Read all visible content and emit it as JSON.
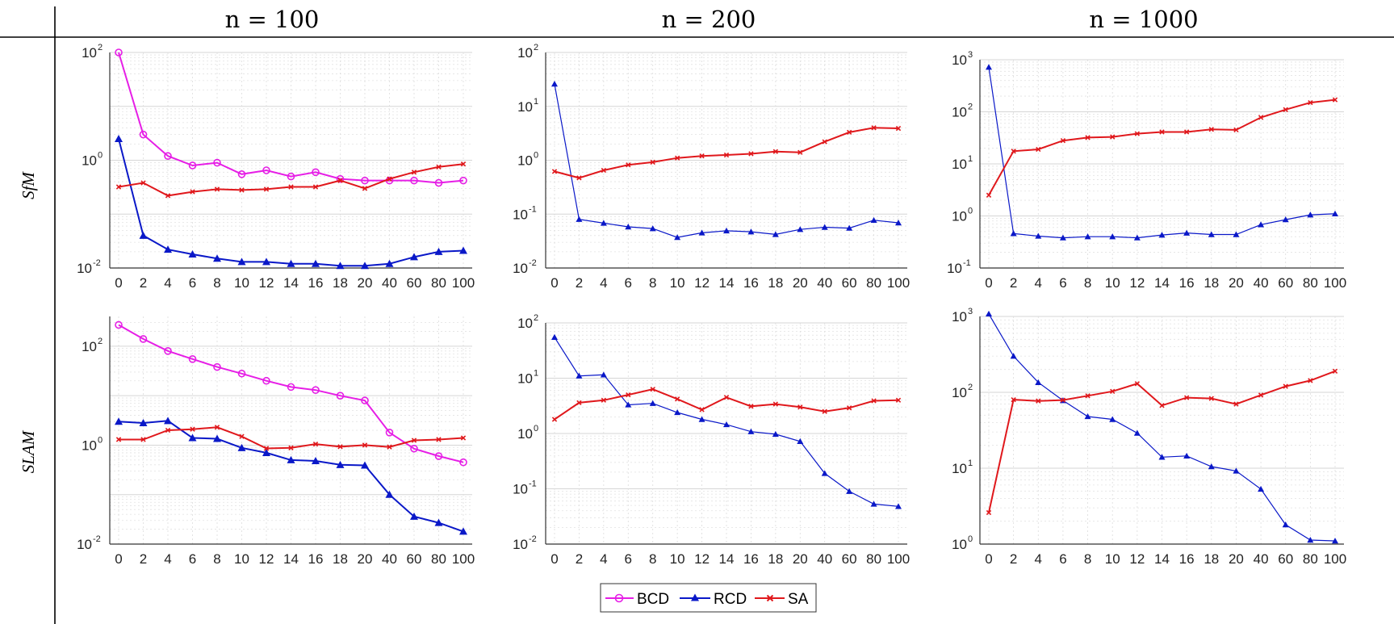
{
  "header": {
    "columns": [
      "n = 100",
      "n = 200",
      "n = 1000"
    ],
    "rows": [
      "SfM",
      "SLAM"
    ]
  },
  "colors": {
    "BCD": "#e61ee6",
    "RCD": "#0a18c8",
    "SA": "#e0181c",
    "grid": "#d6d6d6"
  },
  "legend": [
    {
      "name": "BCD",
      "marker": "circle"
    },
    {
      "name": "RCD",
      "marker": "triangle"
    },
    {
      "name": "SA",
      "marker": "x"
    }
  ],
  "chart_data": [
    {
      "type": "line",
      "row": "SfM",
      "column": "n = 100",
      "categories": [
        "0",
        "2",
        "4",
        "6",
        "8",
        "10",
        "12",
        "14",
        "16",
        "18",
        "20",
        "40",
        "60",
        "80",
        "100"
      ],
      "yscale": "log",
      "ylim": [
        0.01,
        100
      ],
      "yticks": [
        0.01,
        1,
        100
      ],
      "series": [
        {
          "name": "BCD",
          "values": [
            100,
            3.0,
            1.2,
            0.8,
            0.9,
            0.55,
            0.65,
            0.5,
            0.6,
            0.45,
            0.42,
            0.42,
            0.42,
            0.38,
            0.42
          ]
        },
        {
          "name": "RCD",
          "values": [
            2.5,
            0.04,
            0.022,
            0.018,
            0.015,
            0.013,
            0.013,
            0.012,
            0.012,
            0.011,
            0.011,
            0.012,
            0.016,
            0.02,
            0.021
          ]
        },
        {
          "name": "SA",
          "values": [
            0.32,
            0.38,
            0.22,
            0.26,
            0.29,
            0.28,
            0.29,
            0.32,
            0.32,
            0.42,
            0.3,
            0.45,
            0.6,
            0.75,
            0.85
          ]
        }
      ]
    },
    {
      "type": "line",
      "row": "SfM",
      "column": "n = 200",
      "categories": [
        "0",
        "2",
        "4",
        "6",
        "8",
        "10",
        "12",
        "14",
        "16",
        "18",
        "20",
        "40",
        "60",
        "80",
        "100"
      ],
      "yscale": "log",
      "ylim": [
        0.01,
        100
      ],
      "yticks": [
        0.01,
        0.1,
        1,
        10,
        100
      ],
      "series": [
        {
          "name": "RCD",
          "values": [
            26,
            0.08,
            0.068,
            0.058,
            0.054,
            0.037,
            0.045,
            0.049,
            0.047,
            0.042,
            0.052,
            0.057,
            0.055,
            0.077,
            0.069
          ]
        },
        {
          "name": "SA",
          "values": [
            0.62,
            0.47,
            0.65,
            0.82,
            0.92,
            1.1,
            1.2,
            1.25,
            1.32,
            1.45,
            1.4,
            2.2,
            3.3,
            4.0,
            3.9
          ]
        }
      ]
    },
    {
      "type": "line",
      "row": "SfM",
      "column": "n = 1000",
      "categories": [
        "0",
        "2",
        "4",
        "6",
        "8",
        "10",
        "12",
        "14",
        "16",
        "18",
        "20",
        "40",
        "60",
        "80",
        "100"
      ],
      "yscale": "log",
      "ylim": [
        0.1,
        1000
      ],
      "yticks": [
        0.1,
        1,
        10,
        100,
        1000
      ],
      "series": [
        {
          "name": "RCD",
          "values": [
            720,
            0.46,
            0.41,
            0.38,
            0.4,
            0.4,
            0.38,
            0.43,
            0.47,
            0.44,
            0.44,
            0.68,
            0.85,
            1.05,
            1.1
          ]
        },
        {
          "name": "SA",
          "values": [
            2.5,
            17.5,
            19,
            28,
            32,
            33,
            38,
            41,
            41,
            46,
            45,
            78,
            110,
            150,
            170
          ]
        }
      ]
    },
    {
      "type": "line",
      "row": "SLAM",
      "column": "n = 100",
      "categories": [
        "0",
        "2",
        "4",
        "6",
        "8",
        "10",
        "12",
        "14",
        "16",
        "18",
        "20",
        "40",
        "60",
        "80",
        "100"
      ],
      "yscale": "log",
      "ylim": [
        0.01,
        400
      ],
      "yticks": [
        0.01,
        1,
        100
      ],
      "series": [
        {
          "name": "BCD",
          "values": [
            270,
            140,
            80,
            55,
            38,
            28,
            20,
            15,
            13,
            10,
            8,
            1.8,
            0.85,
            0.6,
            0.45
          ]
        },
        {
          "name": "RCD",
          "values": [
            3.0,
            2.8,
            3.1,
            1.4,
            1.35,
            0.88,
            0.7,
            0.5,
            0.48,
            0.4,
            0.39,
            0.1,
            0.036,
            0.027,
            0.018
          ]
        },
        {
          "name": "SA",
          "values": [
            1.3,
            1.3,
            2.0,
            2.1,
            2.3,
            1.5,
            0.86,
            0.88,
            1.05,
            0.93,
            1.0,
            0.92,
            1.25,
            1.3,
            1.4
          ]
        }
      ]
    },
    {
      "type": "line",
      "row": "SLAM",
      "column": "n = 200",
      "categories": [
        "0",
        "2",
        "4",
        "6",
        "8",
        "10",
        "12",
        "14",
        "16",
        "18",
        "20",
        "40",
        "60",
        "80",
        "100"
      ],
      "yscale": "log",
      "ylim": [
        0.01,
        100
      ],
      "yticks": [
        0.01,
        0.1,
        1,
        10,
        100
      ],
      "series": [
        {
          "name": "RCD",
          "values": [
            55,
            11,
            11.5,
            3.3,
            3.5,
            2.4,
            1.8,
            1.45,
            1.08,
            0.97,
            0.72,
            0.19,
            0.09,
            0.053,
            0.048
          ]
        },
        {
          "name": "SA",
          "values": [
            1.8,
            3.6,
            4.0,
            5.0,
            6.3,
            4.2,
            2.7,
            4.5,
            3.1,
            3.4,
            3.0,
            2.5,
            2.9,
            3.9,
            4.0
          ]
        }
      ]
    },
    {
      "type": "line",
      "row": "SLAM",
      "column": "n = 1000",
      "categories": [
        "0",
        "2",
        "4",
        "6",
        "8",
        "10",
        "12",
        "14",
        "16",
        "18",
        "20",
        "40",
        "60",
        "80",
        "100"
      ],
      "yscale": "log",
      "ylim": [
        1,
        1000
      ],
      "yticks": [
        1,
        10,
        100,
        1000
      ],
      "series": [
        {
          "name": "RCD",
          "values": [
            1080,
            300,
            135,
            78,
            48,
            44,
            29,
            14,
            14.5,
            10.5,
            9.2,
            5.3,
            1.8,
            1.13,
            1.1
          ]
        },
        {
          "name": "SA",
          "values": [
            2.6,
            80,
            77,
            79,
            90,
            103,
            130,
            67,
            85,
            83,
            70,
            92,
            120,
            143,
            190
          ]
        }
      ]
    }
  ]
}
